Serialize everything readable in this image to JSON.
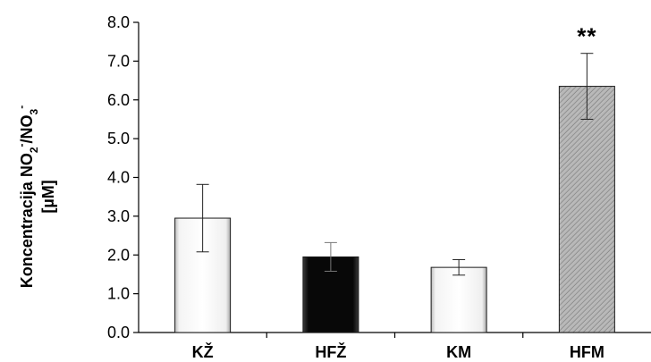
{
  "chart_data": {
    "type": "bar",
    "categories": [
      "KŽ",
      "HFŽ",
      "KM",
      "HFM"
    ],
    "values": [
      2.95,
      1.95,
      1.68,
      6.35
    ],
    "errors": [
      0.87,
      0.37,
      0.2,
      0.85
    ],
    "bar_styles": [
      "white",
      "black",
      "white",
      "hatched-gray"
    ],
    "colors": {
      "white": "#ffffff",
      "black": "#0a0a0a",
      "gray": "#b8b8b8",
      "axis": "#000000"
    },
    "ylabel_line1": {
      "prefix": "Koncentracija NO",
      "sub1": "2",
      "sup1": "-",
      "mid": "/NO",
      "sub2": "3",
      "sup2": "-"
    },
    "ylabel_line2": "[µM]",
    "ylim": [
      0,
      8
    ],
    "yticks": [
      "0.0",
      "1.0",
      "2.0",
      "3.0",
      "4.0",
      "5.0",
      "6.0",
      "7.0",
      "8.0"
    ],
    "annotations": [
      {
        "category": "HFM",
        "text": "**"
      }
    ],
    "grid": false,
    "legend": "none"
  }
}
